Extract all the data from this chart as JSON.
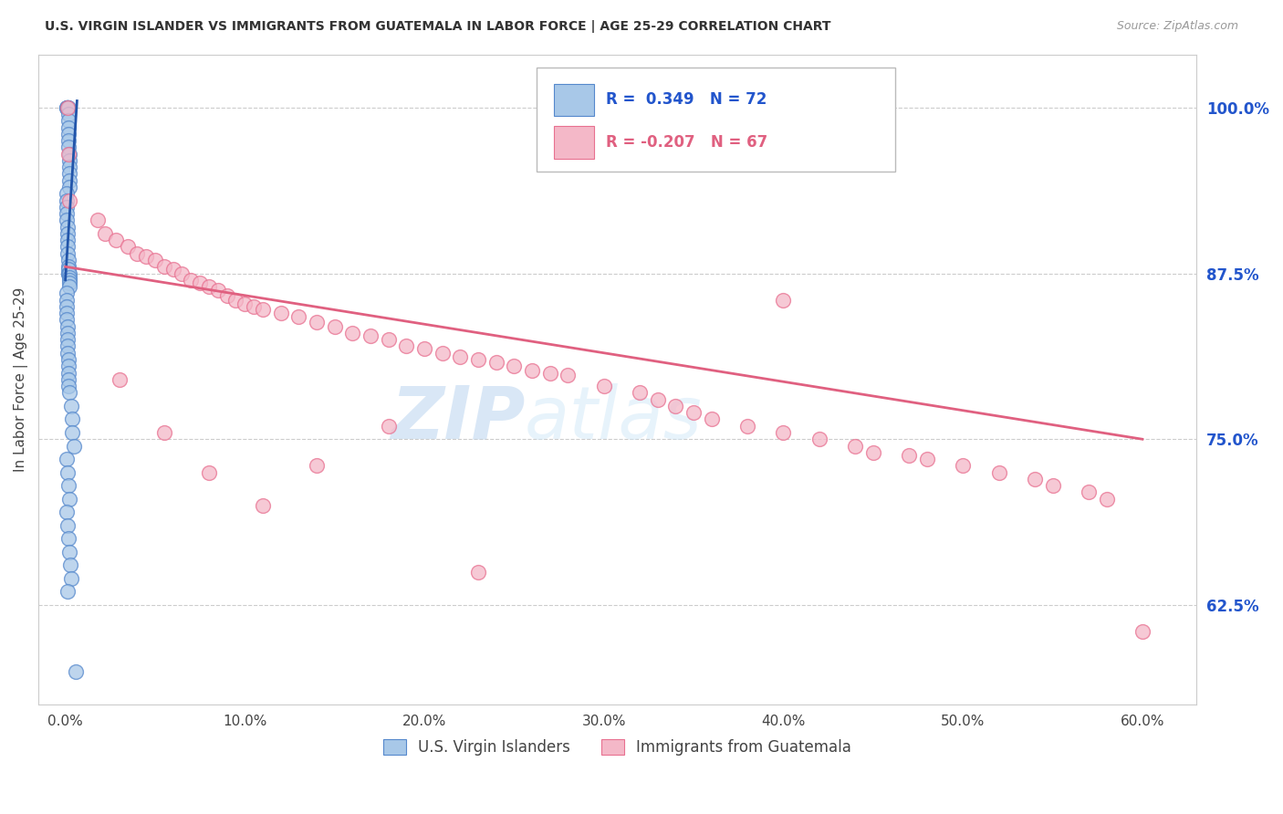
{
  "title": "U.S. VIRGIN ISLANDER VS IMMIGRANTS FROM GUATEMALA IN LABOR FORCE | AGE 25-29 CORRELATION CHART",
  "source": "Source: ZipAtlas.com",
  "ylabel": "In Labor Force | Age 25-29",
  "xlabel_ticks": [
    "0.0%",
    "10.0%",
    "20.0%",
    "30.0%",
    "40.0%",
    "50.0%",
    "60.0%"
  ],
  "xtick_vals": [
    0.0,
    10.0,
    20.0,
    30.0,
    40.0,
    50.0,
    60.0
  ],
  "ytick_vals": [
    62.5,
    75.0,
    87.5,
    100.0
  ],
  "ytick_labels": [
    "62.5%",
    "75.0%",
    "87.5%",
    "100.0%"
  ],
  "xlim": [
    -1.5,
    63
  ],
  "ylim": [
    55,
    104
  ],
  "blue_R": 0.349,
  "blue_N": 72,
  "pink_R": -0.207,
  "pink_N": 67,
  "blue_color": "#a8c8e8",
  "pink_color": "#f4b8c8",
  "blue_edge_color": "#5588cc",
  "pink_edge_color": "#e87090",
  "blue_line_color": "#2255aa",
  "pink_line_color": "#e06080",
  "legend_label_blue": "U.S. Virgin Islanders",
  "legend_label_pink": "Immigrants from Guatemala",
  "watermark_zip": "ZIP",
  "watermark_atlas": "atlas",
  "blue_x": [
    0.05,
    0.08,
    0.1,
    0.1,
    0.12,
    0.13,
    0.14,
    0.15,
    0.15,
    0.16,
    0.17,
    0.18,
    0.18,
    0.19,
    0.2,
    0.2,
    0.21,
    0.22,
    0.22,
    0.23,
    0.05,
    0.06,
    0.07,
    0.08,
    0.09,
    0.1,
    0.11,
    0.12,
    0.13,
    0.14,
    0.15,
    0.16,
    0.17,
    0.18,
    0.19,
    0.2,
    0.21,
    0.22,
    0.23,
    0.24,
    0.05,
    0.06,
    0.07,
    0.08,
    0.09,
    0.1,
    0.11,
    0.12,
    0.13,
    0.14,
    0.15,
    0.16,
    0.17,
    0.18,
    0.19,
    0.2,
    0.3,
    0.35,
    0.4,
    0.5,
    0.05,
    0.1,
    0.15,
    0.2,
    0.08,
    0.12,
    0.18,
    0.22,
    0.25,
    0.3,
    0.1,
    0.6
  ],
  "blue_y": [
    100.0,
    100.0,
    100.0,
    100.0,
    100.0,
    100.0,
    100.0,
    100.0,
    99.5,
    99.0,
    98.5,
    98.0,
    97.5,
    97.0,
    96.5,
    96.0,
    95.5,
    95.0,
    94.5,
    94.0,
    93.5,
    93.0,
    92.5,
    92.0,
    91.5,
    91.0,
    90.5,
    90.0,
    89.5,
    89.0,
    88.5,
    88.0,
    87.8,
    87.5,
    87.5,
    87.5,
    87.2,
    87.0,
    86.8,
    86.5,
    86.0,
    85.5,
    85.0,
    84.5,
    84.0,
    83.5,
    83.0,
    82.5,
    82.0,
    81.5,
    81.0,
    80.5,
    80.0,
    79.5,
    79.0,
    78.5,
    77.5,
    76.5,
    75.5,
    74.5,
    73.5,
    72.5,
    71.5,
    70.5,
    69.5,
    68.5,
    67.5,
    66.5,
    65.5,
    64.5,
    63.5,
    57.5
  ],
  "pink_x": [
    0.1,
    0.15,
    0.2,
    1.8,
    2.2,
    2.8,
    3.5,
    4.0,
    4.5,
    5.0,
    5.5,
    6.0,
    6.5,
    7.0,
    7.5,
    8.0,
    8.5,
    9.0,
    9.5,
    10.0,
    10.5,
    11.0,
    12.0,
    13.0,
    14.0,
    15.0,
    16.0,
    17.0,
    18.0,
    19.0,
    20.0,
    21.0,
    22.0,
    23.0,
    24.0,
    25.0,
    26.0,
    27.0,
    28.0,
    30.0,
    32.0,
    33.0,
    34.0,
    35.0,
    36.0,
    38.0,
    40.0,
    42.0,
    44.0,
    45.0,
    47.0,
    48.0,
    50.0,
    52.0,
    54.0,
    55.0,
    57.0,
    58.0,
    60.0,
    40.0,
    3.0,
    5.5,
    8.0,
    11.0,
    14.0,
    18.0,
    23.0
  ],
  "pink_y": [
    100.0,
    96.5,
    93.0,
    91.5,
    90.5,
    90.0,
    89.5,
    89.0,
    88.8,
    88.5,
    88.0,
    87.8,
    87.5,
    87.0,
    86.8,
    86.5,
    86.2,
    85.8,
    85.5,
    85.2,
    85.0,
    84.8,
    84.5,
    84.2,
    83.8,
    83.5,
    83.0,
    82.8,
    82.5,
    82.0,
    81.8,
    81.5,
    81.2,
    81.0,
    80.8,
    80.5,
    80.2,
    80.0,
    79.8,
    79.0,
    78.5,
    78.0,
    77.5,
    77.0,
    76.5,
    76.0,
    75.5,
    75.0,
    74.5,
    74.0,
    73.8,
    73.5,
    73.0,
    72.5,
    72.0,
    71.5,
    71.0,
    70.5,
    60.5,
    85.5,
    79.5,
    75.5,
    72.5,
    70.0,
    73.0,
    76.0,
    65.0
  ]
}
